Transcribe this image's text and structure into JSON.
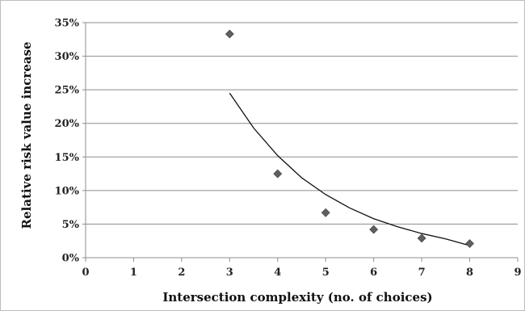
{
  "chart_data": {
    "type": "scatter",
    "title": "",
    "xlabel": "Intersection complexity (no. of choices)",
    "ylabel": "Relative risk value increase",
    "xlim": [
      0,
      9
    ],
    "ylim": [
      0,
      0.35
    ],
    "x_ticks": [
      0,
      1,
      2,
      3,
      4,
      5,
      6,
      7,
      8,
      9
    ],
    "y_ticks": [
      "0%",
      "5%",
      "10%",
      "15%",
      "20%",
      "25%",
      "30%",
      "35%"
    ],
    "y_tick_values": [
      0,
      0.05,
      0.1,
      0.15,
      0.2,
      0.25,
      0.3,
      0.35
    ],
    "grid": {
      "horizontal": true,
      "vertical": false
    },
    "legend": "none",
    "series": [
      {
        "marker": "diamond",
        "color": "#5f5f5f",
        "points": [
          {
            "x": 3,
            "y": 0.333
          },
          {
            "x": 4,
            "y": 0.125
          },
          {
            "x": 5,
            "y": 0.067
          },
          {
            "x": 6,
            "y": 0.042
          },
          {
            "x": 7,
            "y": 0.029
          },
          {
            "x": 8,
            "y": 0.021
          }
        ]
      }
    ],
    "trendline": {
      "type": "exponential",
      "color": "#111111",
      "x_range": [
        3,
        8
      ],
      "points": [
        {
          "x": 3.0,
          "y": 0.245
        },
        {
          "x": 3.5,
          "y": 0.193
        },
        {
          "x": 4.0,
          "y": 0.152
        },
        {
          "x": 4.5,
          "y": 0.119
        },
        {
          "x": 5.0,
          "y": 0.094
        },
        {
          "x": 5.5,
          "y": 0.074
        },
        {
          "x": 6.0,
          "y": 0.058
        },
        {
          "x": 6.5,
          "y": 0.046
        },
        {
          "x": 7.0,
          "y": 0.036
        },
        {
          "x": 7.5,
          "y": 0.028
        },
        {
          "x": 8.0,
          "y": 0.018
        }
      ]
    }
  }
}
